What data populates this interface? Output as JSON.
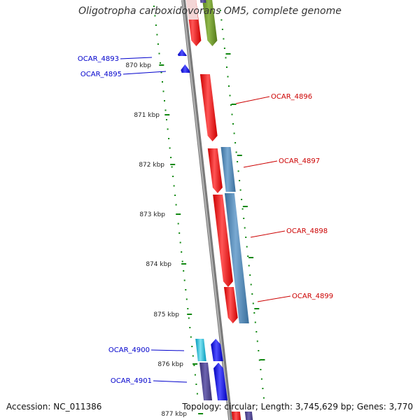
{
  "title": "Oligotropha carboxidovorans OM5, complete genome",
  "accession": "Accession: NC_011386",
  "summary": "Topology: circular; Length: 3,745,629 bp; Genes: 3,770",
  "colors": {
    "backbone": "#999999",
    "forward_gene": "#ff0000",
    "blue_gene": "#0000ee",
    "steel_gene": "#4682b4",
    "olive_gene": "#6b8e23",
    "cyan_gene": "#00bbdd",
    "indigo_gene": "#483d8b",
    "tick": "#118811",
    "label_red": "#cc0000",
    "label_blue": "#0000cc"
  },
  "scale_labels": [
    "870 kbp",
    "871 kbp",
    "872 kbp",
    "873 kbp",
    "874 kbp",
    "875 kbp",
    "876 kbp",
    "877 kbp"
  ],
  "gene_labels": [
    {
      "text": "OCAR_4893",
      "color": "blue"
    },
    {
      "text": "OCAR_4895",
      "color": "blue"
    },
    {
      "text": "OCAR_4896",
      "color": "red"
    },
    {
      "text": "OCAR_4897",
      "color": "red"
    },
    {
      "text": "OCAR_4898",
      "color": "red"
    },
    {
      "text": "OCAR_4899",
      "color": "red"
    },
    {
      "text": "OCAR_4900",
      "color": "blue"
    },
    {
      "text": "OCAR_4901",
      "color": "blue"
    }
  ]
}
